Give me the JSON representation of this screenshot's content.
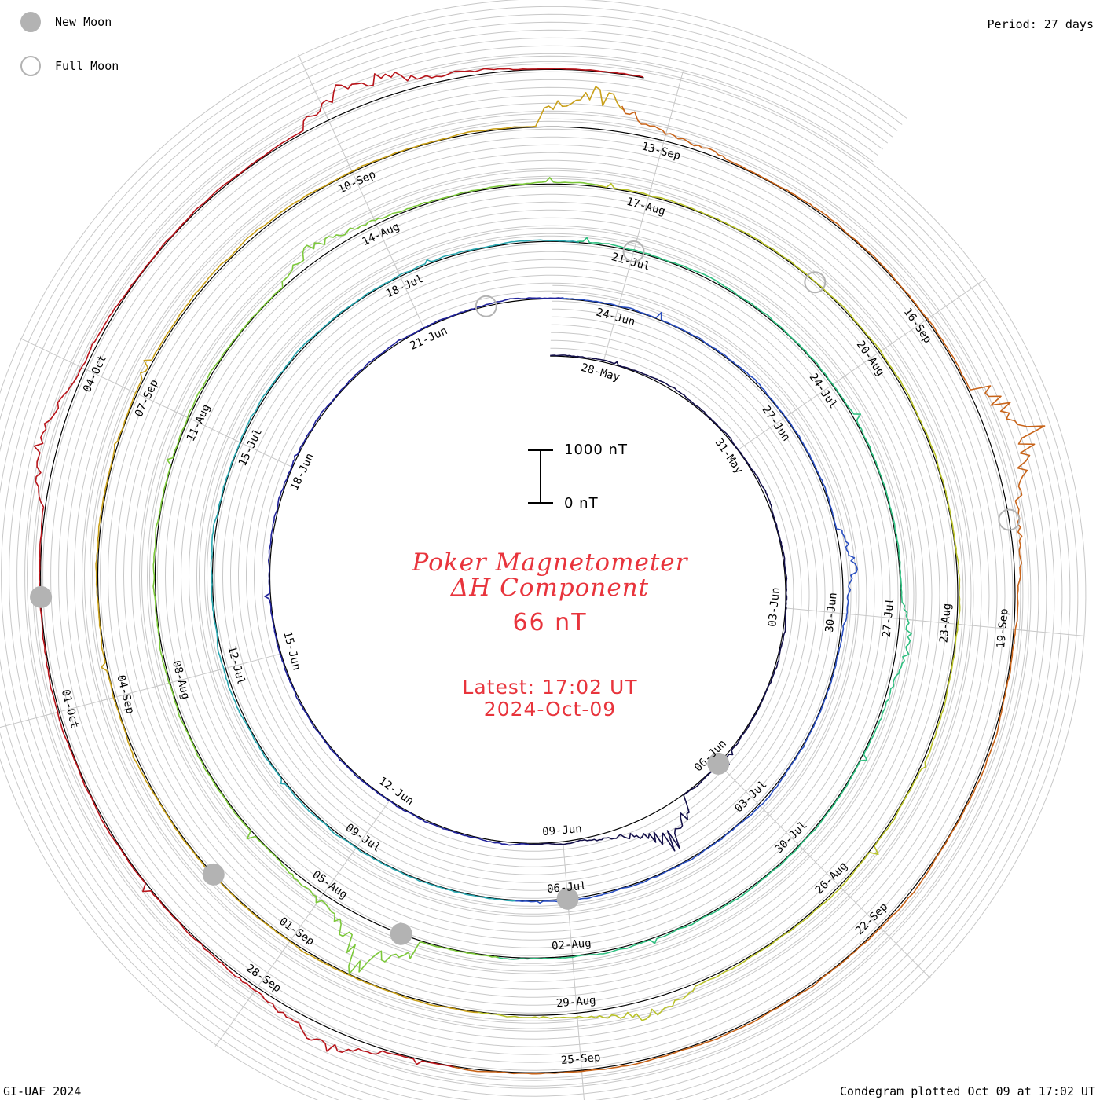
{
  "chart_data": {
    "type": "line",
    "subtype": "polar-condegram",
    "title": "Poker Magnetometer",
    "subtitle": "ΔH Component",
    "current_value": "66 nT",
    "latest_time": "Latest: 17:02 UT",
    "latest_date": "2024-Oct-09",
    "period": "Period: 27 days",
    "scale_bar": {
      "top_label": "1000 nT",
      "bottom_label": "0 nT"
    },
    "credit": "GI-UAF 2024",
    "plotted": "Condegram plotted Oct 09 at 17:02 UT",
    "legend": [
      {
        "symbol": "filled-gray-circle",
        "label": "New Moon"
      },
      {
        "symbol": "hollow-gray-circle",
        "label": "Full Moon"
      }
    ],
    "start_date": "2024-05-27",
    "ring_date_labels": [
      [
        "28-May",
        "31-May",
        "03-Jun",
        "06-Jun",
        "09-Jun",
        "12-Jun",
        "15-Jun",
        "18-Jun",
        "21-Jun"
      ],
      [
        "24-Jun",
        "27-Jun",
        "30-Jun",
        "03-Jul",
        "06-Jul",
        "09-Jul",
        "12-Jul",
        "15-Jul",
        "18-Jul"
      ],
      [
        "21-Jul",
        "24-Jul",
        "27-Jul",
        "30-Jul",
        "02-Aug",
        "05-Aug",
        "08-Aug",
        "11-Aug",
        "14-Aug"
      ],
      [
        "17-Aug",
        "20-Aug",
        "23-Aug",
        "26-Aug",
        "29-Aug",
        "01-Sep",
        "04-Sep",
        "07-Sep",
        "10-Sep"
      ],
      [
        "13-Sep",
        "16-Sep",
        "19-Sep",
        "22-Sep",
        "25-Sep",
        "28-Sep",
        "01-Oct",
        "04-Oct"
      ]
    ],
    "new_moons": [
      "06-Jun",
      "06-Jul",
      "04-Aug",
      "02-Sep",
      "02-Oct"
    ],
    "full_moons": [
      "22-Jun",
      "21-Jul",
      "19-Aug",
      "18-Sep"
    ],
    "series_colors": [
      "#14104a",
      "#20229a",
      "#2a4fc0",
      "#2aa7b0",
      "#2fbf80",
      "#7cc83a",
      "#b9c22a",
      "#c9a01a",
      "#c8641a",
      "#b8141a"
    ],
    "disturbances": [
      {
        "date": "2024-06-07",
        "peak_nT": 900
      },
      {
        "date": "2024-06-29",
        "peak_nT": 320
      },
      {
        "date": "2024-07-27",
        "peak_nT": 280
      },
      {
        "date": "2024-08-04",
        "peak_nT": 1100
      },
      {
        "date": "2024-08-13",
        "peak_nT": 380
      },
      {
        "date": "2024-08-28",
        "peak_nT": 420
      },
      {
        "date": "2024-09-12",
        "peak_nT": 1000
      },
      {
        "date": "2024-09-17",
        "peak_nT": 1200
      },
      {
        "date": "2024-09-27",
        "peak_nT": 450
      },
      {
        "date": "2024-10-03",
        "peak_nT": 500
      },
      {
        "date": "2024-10-07",
        "peak_nT": 750
      }
    ]
  }
}
